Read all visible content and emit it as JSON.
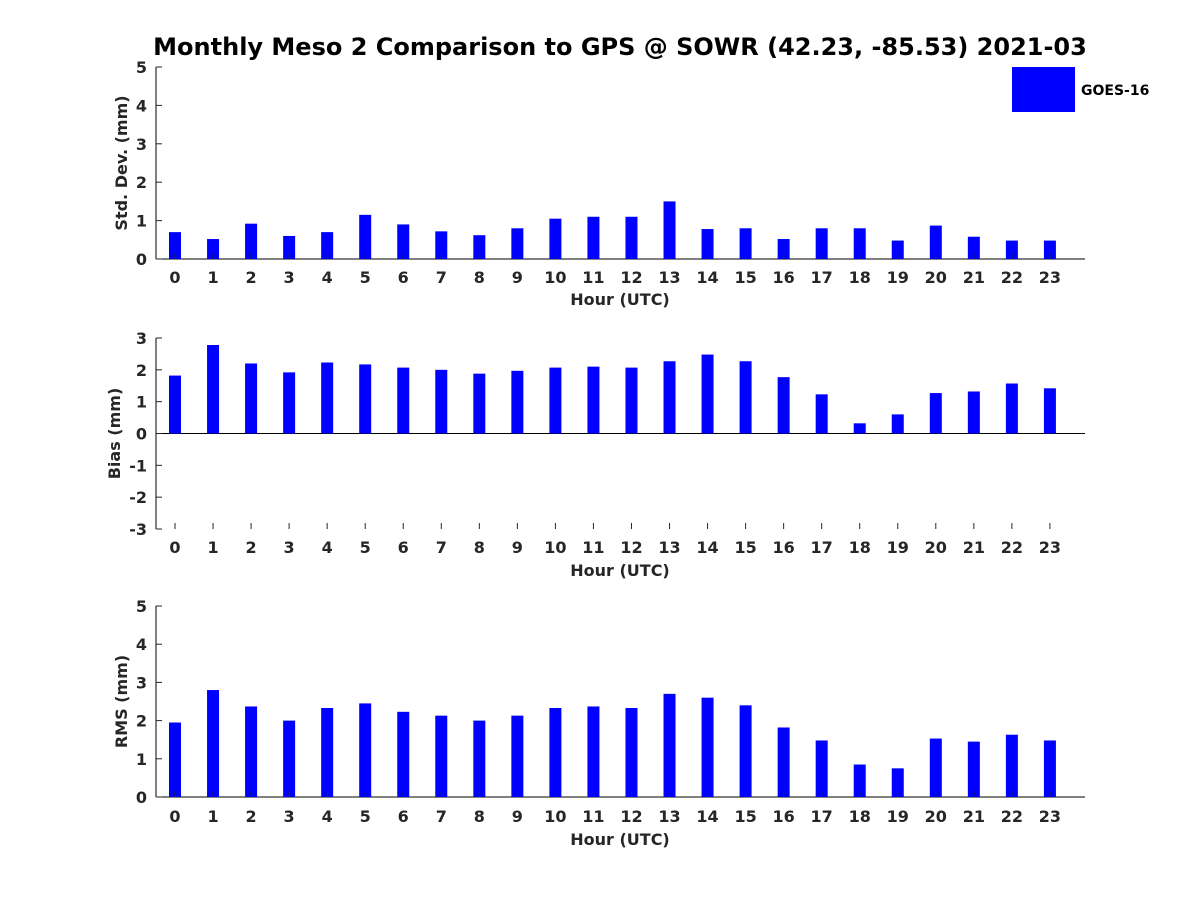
{
  "figure": {
    "title": "Monthly Meso 2 Comparison to GPS @ SOWR (42.23, -85.53) 2021-03",
    "series_color": "#0000ff",
    "legend": {
      "label": "GOES-16",
      "position": "top-right"
    }
  },
  "chart_data": [
    {
      "type": "bar",
      "id": "std",
      "title": "",
      "xlabel": "Hour (UTC)",
      "ylabel": "Std. Dev. (mm)",
      "ylim": [
        0,
        5
      ],
      "yticks": [
        0,
        1,
        2,
        3,
        4,
        5
      ],
      "categories": [
        "0",
        "1",
        "2",
        "3",
        "4",
        "5",
        "6",
        "7",
        "8",
        "9",
        "10",
        "11",
        "12",
        "13",
        "14",
        "15",
        "16",
        "17",
        "18",
        "19",
        "20",
        "21",
        "22",
        "23"
      ],
      "series": [
        {
          "name": "GOES-16",
          "values": [
            0.7,
            0.52,
            0.92,
            0.6,
            0.7,
            1.15,
            0.9,
            0.72,
            0.62,
            0.8,
            1.05,
            1.1,
            1.1,
            1.5,
            0.78,
            0.8,
            0.52,
            0.8,
            0.8,
            0.48,
            0.87,
            0.58,
            0.48,
            0.48
          ]
        }
      ]
    },
    {
      "type": "bar",
      "id": "bias",
      "title": "",
      "xlabel": "Hour (UTC)",
      "ylabel": "Bias (mm)",
      "ylim": [
        -3,
        3
      ],
      "yticks": [
        -3,
        -2,
        -1,
        0,
        1,
        2,
        3
      ],
      "categories": [
        "0",
        "1",
        "2",
        "3",
        "4",
        "5",
        "6",
        "7",
        "8",
        "9",
        "10",
        "11",
        "12",
        "13",
        "14",
        "15",
        "16",
        "17",
        "18",
        "19",
        "20",
        "21",
        "22",
        "23"
      ],
      "series": [
        {
          "name": "GOES-16",
          "values": [
            1.82,
            2.78,
            2.2,
            1.92,
            2.23,
            2.17,
            2.07,
            2.0,
            1.88,
            1.97,
            2.07,
            2.1,
            2.07,
            2.27,
            2.48,
            2.27,
            1.77,
            1.23,
            0.32,
            0.6,
            1.27,
            1.32,
            1.57,
            1.42
          ]
        }
      ]
    },
    {
      "type": "bar",
      "id": "rms",
      "title": "",
      "xlabel": "Hour (UTC)",
      "ylabel": "RMS (mm)",
      "ylim": [
        0,
        5
      ],
      "yticks": [
        0,
        1,
        2,
        3,
        4,
        5
      ],
      "categories": [
        "0",
        "1",
        "2",
        "3",
        "4",
        "5",
        "6",
        "7",
        "8",
        "9",
        "10",
        "11",
        "12",
        "13",
        "14",
        "15",
        "16",
        "17",
        "18",
        "19",
        "20",
        "21",
        "22",
        "23"
      ],
      "series": [
        {
          "name": "GOES-16",
          "values": [
            1.95,
            2.8,
            2.37,
            2.0,
            2.33,
            2.45,
            2.23,
            2.13,
            2.0,
            2.13,
            2.33,
            2.37,
            2.33,
            2.7,
            2.6,
            2.4,
            1.82,
            1.48,
            0.85,
            0.75,
            1.53,
            1.45,
            1.63,
            1.48
          ]
        }
      ]
    }
  ]
}
